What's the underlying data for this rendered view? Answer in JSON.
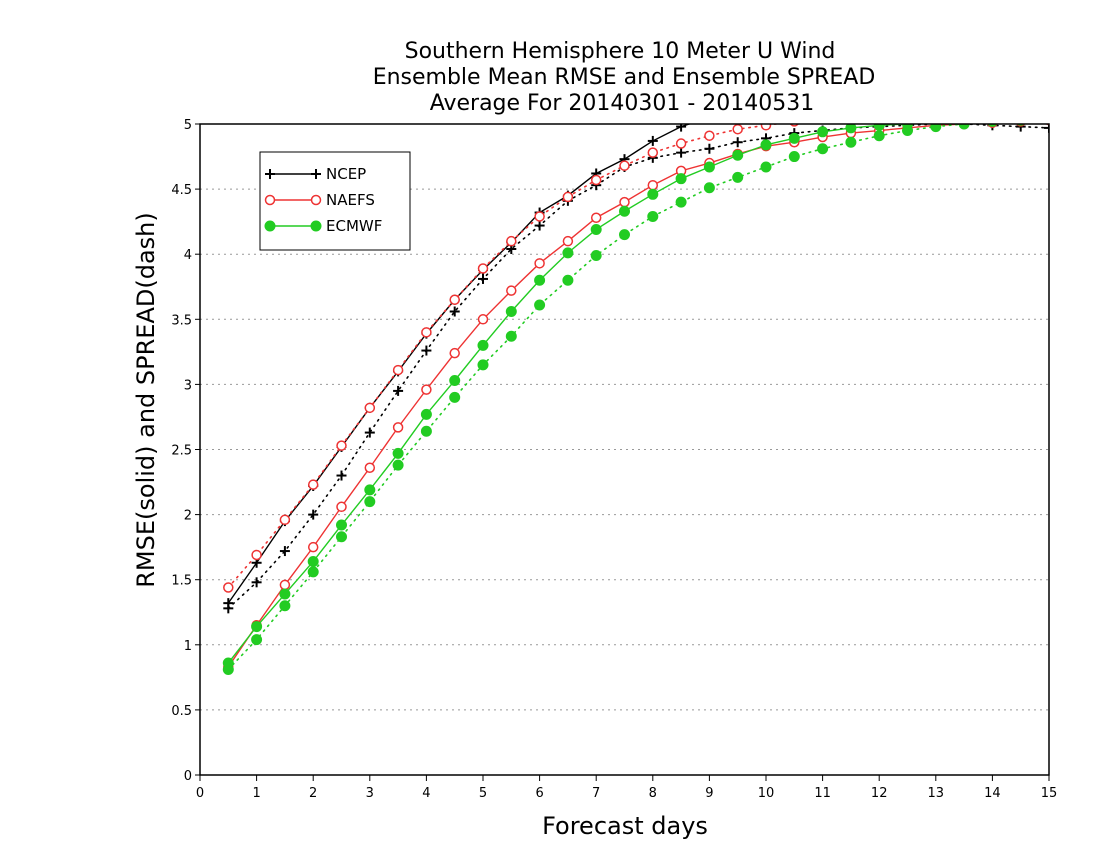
{
  "chart_data": {
    "type": "line",
    "title": [
      "Southern Hemisphere 10 Meter U Wind",
      "Ensemble Mean RMSE and Ensemble SPREAD",
      "Average For 20140301 - 20140531"
    ],
    "xlabel": "Forecast days",
    "ylabel": "RMSE(solid) and SPREAD(dash)",
    "xlim": [
      0,
      15
    ],
    "ylim": [
      0,
      5
    ],
    "x_ticks": [
      0,
      1,
      2,
      3,
      4,
      5,
      6,
      7,
      8,
      9,
      10,
      11,
      12,
      13,
      14,
      15
    ],
    "y_ticks": [
      0,
      0.5,
      1,
      1.5,
      2,
      2.5,
      3,
      3.5,
      4,
      4.5,
      5
    ],
    "y_tick_labels": [
      "0",
      "0.5",
      "1",
      "1.5",
      "2",
      "2.5",
      "3",
      "3.5",
      "4",
      "4.5",
      "5"
    ],
    "grid": "horizontal dotted",
    "legend_position": "top-left",
    "x": [
      0.5,
      1,
      1.5,
      2,
      2.5,
      3,
      3.5,
      4,
      4.5,
      5,
      5.5,
      6,
      6.5,
      7,
      7.5,
      8,
      8.5,
      9,
      9.5,
      10,
      10.5,
      11,
      11.5,
      12,
      12.5,
      13,
      13.5,
      14,
      14.5,
      15
    ],
    "series": [
      {
        "name": "NCEP",
        "color": "#000000",
        "marker": "plus",
        "rmse": [
          1.32,
          1.63,
          1.95,
          2.22,
          2.52,
          2.82,
          3.1,
          3.39,
          3.65,
          3.88,
          4.09,
          4.32,
          4.45,
          4.62,
          4.73,
          4.87,
          4.98,
          5.05,
          5.1,
          5.13,
          5.15,
          5.17,
          5.18,
          5.2,
          5.21,
          5.22,
          5.23,
          5.24,
          5.25,
          5.25
        ],
        "spread": [
          1.28,
          1.48,
          1.72,
          2.0,
          2.3,
          2.63,
          2.95,
          3.26,
          3.56,
          3.81,
          4.04,
          4.22,
          4.41,
          4.53,
          4.67,
          4.74,
          4.78,
          4.81,
          4.86,
          4.89,
          4.93,
          4.95,
          4.97,
          4.98,
          4.99,
          5.0,
          5.0,
          4.99,
          4.98,
          4.97
        ]
      },
      {
        "name": "NAEFS",
        "color": "#ee3333",
        "marker": "open-circle",
        "rmse": [
          0.83,
          1.15,
          1.46,
          1.75,
          2.06,
          2.36,
          2.67,
          2.96,
          3.24,
          3.5,
          3.72,
          3.93,
          4.1,
          4.28,
          4.4,
          4.53,
          4.64,
          4.7,
          4.77,
          4.83,
          4.86,
          4.9,
          4.93,
          4.95,
          4.97,
          4.99,
          5.0,
          5.01,
          5.02,
          5.03
        ],
        "spread": [
          1.44,
          1.69,
          1.96,
          2.23,
          2.53,
          2.82,
          3.11,
          3.4,
          3.65,
          3.89,
          4.1,
          4.29,
          4.44,
          4.57,
          4.68,
          4.78,
          4.85,
          4.91,
          4.96,
          4.99,
          5.02,
          5.04,
          5.05,
          5.06,
          5.07,
          5.08,
          5.09,
          5.1,
          5.1,
          5.1
        ]
      },
      {
        "name": "ECMWF",
        "color": "#22cc22",
        "marker": "filled-circle",
        "rmse": [
          0.86,
          1.14,
          1.39,
          1.64,
          1.92,
          2.19,
          2.47,
          2.77,
          3.03,
          3.3,
          3.56,
          3.8,
          4.01,
          4.19,
          4.33,
          4.46,
          4.58,
          4.67,
          4.76,
          4.84,
          4.89,
          4.94,
          4.97,
          4.99,
          5.0,
          5.01,
          5.02,
          5.03,
          5.03,
          5.04
        ],
        "spread": [
          0.81,
          1.04,
          1.3,
          1.56,
          1.83,
          2.1,
          2.38,
          2.64,
          2.9,
          3.15,
          3.37,
          3.61,
          3.8,
          3.99,
          4.15,
          4.29,
          4.4,
          4.51,
          4.59,
          4.67,
          4.75,
          4.81,
          4.86,
          4.91,
          4.95,
          4.98,
          5.0,
          5.02,
          5.03,
          5.04
        ]
      }
    ]
  }
}
